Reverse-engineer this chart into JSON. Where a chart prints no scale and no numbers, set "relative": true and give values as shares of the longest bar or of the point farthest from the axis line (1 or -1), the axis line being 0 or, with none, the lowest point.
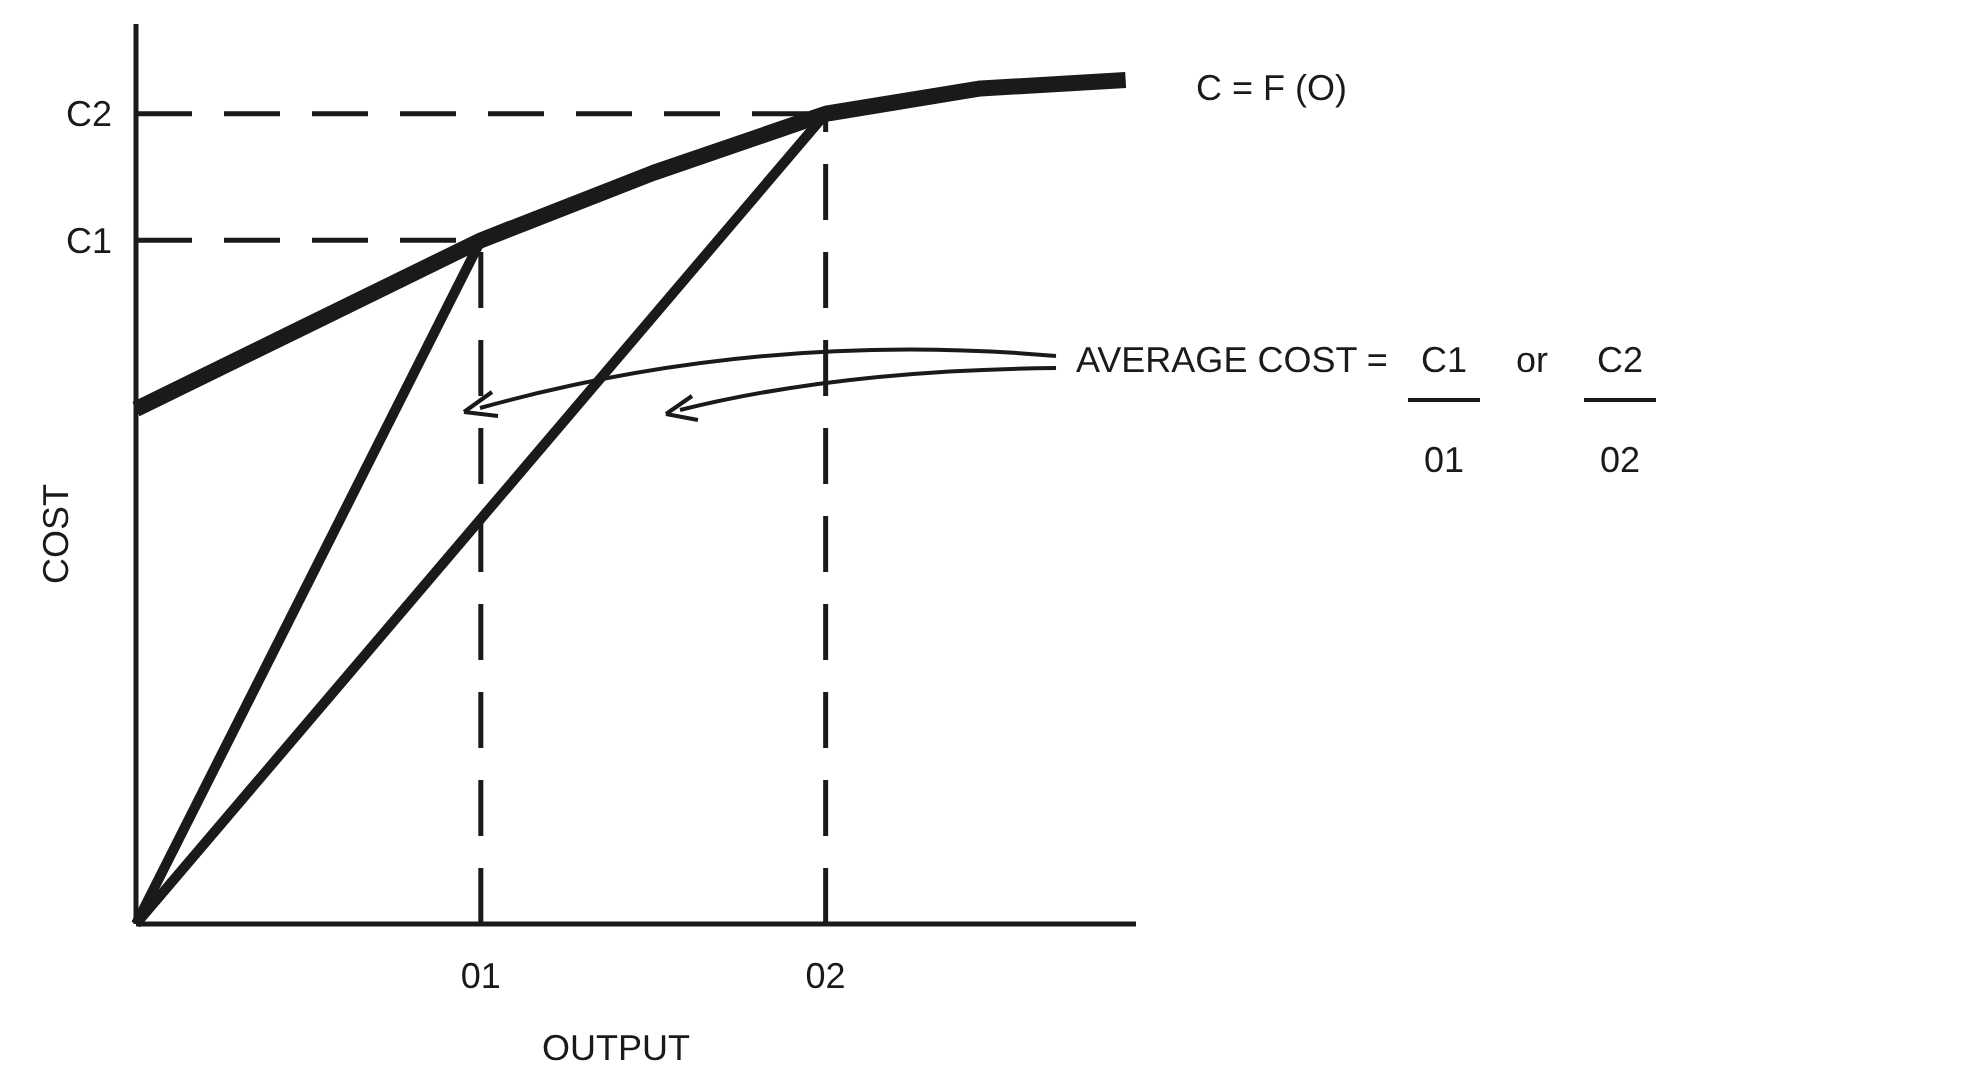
{
  "chart_data": {
    "type": "line",
    "xlabel": "OUTPUT",
    "ylabel": "COST",
    "relative": true,
    "xlim": [
      0,
      2.9
    ],
    "xticks": [
      {
        "value": 1,
        "label": "01"
      },
      {
        "value": 2,
        "label": "02"
      }
    ],
    "marker": "none",
    "series": [
      {
        "color": "#1a1a1a",
        "x": [
          0,
          0.5,
          1,
          1.5,
          2,
          2.45,
          2.87
        ],
        "values": [
          0.61,
          0.71,
          0.81,
          0.89,
          0.96,
          0.99,
          1
        ]
      },
      {
        "color": "#1a1a1a",
        "x": [
          0,
          1
        ],
        "values": [
          0,
          0.81
        ]
      },
      {
        "color": "#1a1a1a",
        "x": [
          0,
          2
        ],
        "values": [
          0,
          0.96
        ]
      },
      {
        "color": "#1a1a1a",
        "line_style": "dashed",
        "x": [
          0,
          1
        ],
        "values": [
          0.81,
          0.81
        ]
      },
      {
        "color": "#1a1a1a",
        "line_style": "dashed",
        "x": [
          0,
          2
        ],
        "values": [
          0.96,
          0.96
        ]
      },
      {
        "color": "#1a1a1a",
        "line_style": "dashed",
        "x": [
          1,
          1
        ],
        "values": [
          0,
          0.81
        ]
      },
      {
        "color": "#1a1a1a",
        "line_style": "dashed",
        "x": [
          2,
          2
        ],
        "values": [
          0,
          0.96
        ]
      }
    ],
    "annotations": [
      "C = F (O)",
      "AVERAGE COST =",
      "C1",
      "01",
      "or",
      "C2",
      "02",
      {
        "text": "C1",
        "x": 0,
        "y": 0.81
      },
      {
        "text": "C2",
        "x": 0,
        "y": 0.96
      }
    ]
  }
}
